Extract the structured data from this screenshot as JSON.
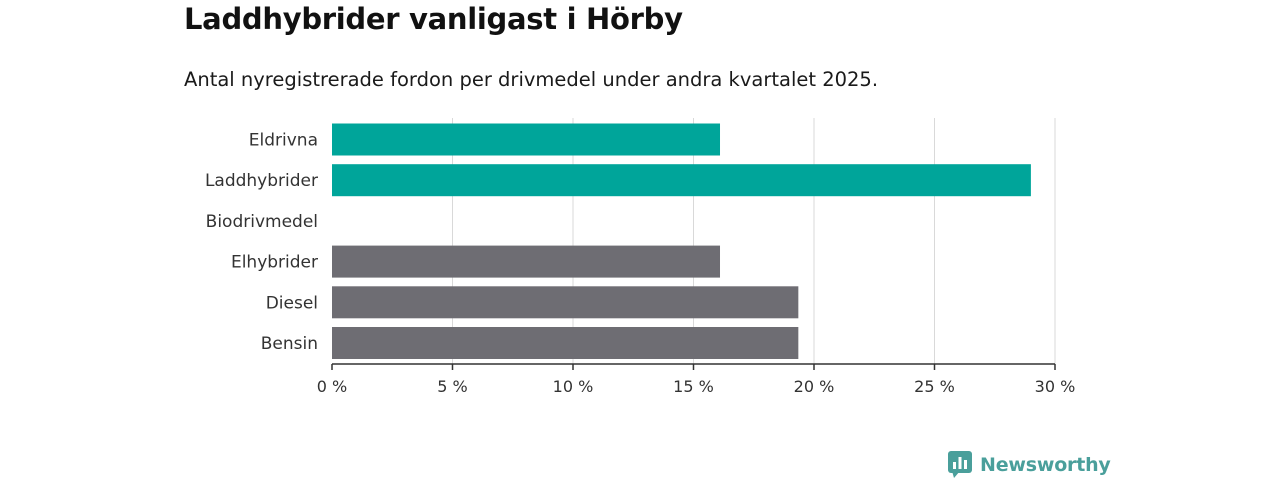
{
  "header": {
    "title": "Laddhybrider vanligast i Hörby",
    "subtitle": "Antal nyregistrerade fordon per drivmedel under andra kvartalet 2025."
  },
  "brand": {
    "name": "Newsworthy",
    "icon": "newsworthy-logo-icon",
    "color": "#4a9f9b"
  },
  "colors": {
    "highlight": "#00a59a",
    "default": "#6e6d73",
    "grid": "#d9d9d9",
    "axis": "#333333"
  },
  "chart_data": {
    "type": "bar",
    "orientation": "horizontal",
    "categories": [
      "Eldrivna",
      "Laddhybrider",
      "Biodrivmedel",
      "Elhybrider",
      "Diesel",
      "Bensin"
    ],
    "values": [
      16.1,
      29.0,
      0,
      16.1,
      19.35,
      19.35
    ],
    "bar_colors": [
      "#00a59a",
      "#00a59a",
      "#6e6d73",
      "#6e6d73",
      "#6e6d73",
      "#6e6d73"
    ],
    "xlim": [
      0,
      30
    ],
    "xticks": [
      0,
      5,
      10,
      15,
      20,
      25,
      30
    ],
    "xtick_labels": [
      "0 %",
      "5 %",
      "10 %",
      "15 %",
      "20 %",
      "25 %",
      "30 %"
    ],
    "grid": true,
    "legend": "none"
  }
}
